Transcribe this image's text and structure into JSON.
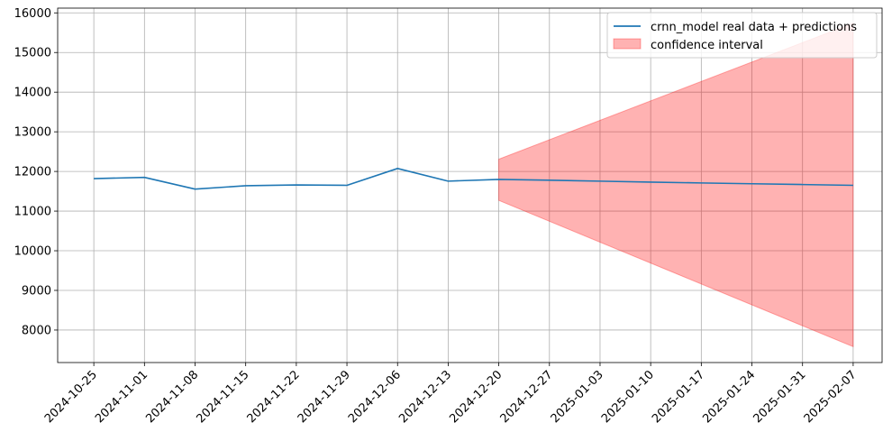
{
  "chart_data": {
    "type": "line",
    "title": "",
    "xlabel": "",
    "ylabel": "",
    "x_ticks": [
      "2024-10-25",
      "2024-11-01",
      "2024-11-08",
      "2024-11-15",
      "2024-11-22",
      "2024-11-29",
      "2024-12-06",
      "2024-12-13",
      "2024-12-20",
      "2024-12-27",
      "2025-01-03",
      "2025-01-10",
      "2025-01-17",
      "2025-01-24",
      "2025-01-31",
      "2025-02-07"
    ],
    "xlim": [
      "2024-10-20",
      "2025-02-11"
    ],
    "y_ticks": [
      8000,
      9000,
      10000,
      11000,
      12000,
      13000,
      14000,
      15000,
      16000
    ],
    "ylim": [
      7180,
      16120
    ],
    "grid": true,
    "legend_position": "upper right",
    "series": [
      {
        "name": "crnn_model real data + predictions",
        "color": "#1f77b4",
        "x": [
          "2024-10-25",
          "2024-11-01",
          "2024-11-08",
          "2024-11-15",
          "2024-11-22",
          "2024-11-29",
          "2024-12-06",
          "2024-12-13",
          "2024-12-20",
          "2024-12-27",
          "2025-01-03",
          "2025-01-10",
          "2025-01-17",
          "2025-01-24",
          "2025-01-31",
          "2025-02-07"
        ],
        "y": [
          11820,
          11850,
          11555,
          11640,
          11660,
          11650,
          12075,
          11755,
          11800,
          11780,
          11755,
          11730,
          11710,
          11690,
          11670,
          11650
        ]
      }
    ],
    "bands": [
      {
        "name": "confidence interval",
        "color": "#ff0000",
        "opacity": 0.3,
        "x": [
          "2024-12-20",
          "2025-02-07"
        ],
        "lower": [
          11270,
          7580
        ],
        "upper": [
          12310,
          15740
        ]
      }
    ]
  }
}
